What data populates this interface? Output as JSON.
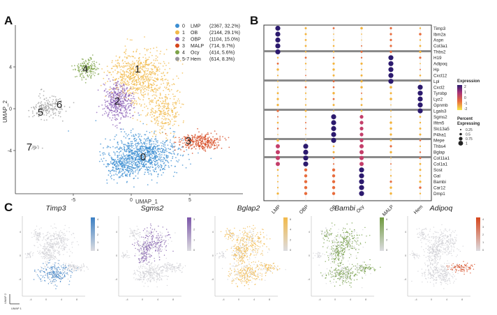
{
  "panel_letters": {
    "a": "A",
    "b": "B",
    "c": "C"
  },
  "panel_a": {
    "xlabel": "UMAP_1",
    "ylabel": "UMAP_2",
    "x_ticks": [
      "-5",
      "0",
      "5"
    ],
    "y_ticks": [
      "4",
      "0",
      "-4"
    ],
    "cluster_labels": [
      "0",
      "1",
      "2",
      "3",
      "4",
      "5",
      "6",
      "7"
    ],
    "legend": [
      {
        "id": "0",
        "name": "LMP",
        "stats": "(2367, 32.2%)",
        "color": "#3b8ed2"
      },
      {
        "id": "1",
        "name": "OB",
        "stats": "(2144, 29.1%)",
        "color": "#f2b94a"
      },
      {
        "id": "2",
        "name": "OBP",
        "stats": "(1104, 15.0%)",
        "color": "#8e63b8"
      },
      {
        "id": "3",
        "name": "MALP",
        "stats": "(714, 9.7%)",
        "color": "#d6461c"
      },
      {
        "id": "4",
        "name": "Ocy",
        "stats": "(414, 5.6%)",
        "color": "#7da348"
      },
      {
        "id": "5-7",
        "name": "Hem",
        "stats": "(614, 8.3%)",
        "color": "#9c9c9c"
      }
    ]
  },
  "panel_b": {
    "columns": [
      "LMP",
      "OBP",
      "OB",
      "Ocy",
      "MALP",
      "Hem"
    ],
    "genes": [
      "Timp3",
      "Ibm2a",
      "Aspn",
      "Col3a1",
      "Thbs2",
      "H19",
      "Adipoq",
      "Hp",
      "Cxcl12",
      "Lpl",
      "Cxcl2",
      "Tyrobp",
      "Lyz2",
      "Gpnmb",
      "Lgals3",
      "Sgms2",
      "Ifitm5",
      "Slc13a5",
      "P4ha1",
      "Mepe",
      "Thbs4",
      "Bglap",
      "Col11a1",
      "Col1a1",
      "Sost",
      "Gal",
      "Bambi",
      "Car12",
      "Dmp1"
    ],
    "legend_expression_title": "Expression",
    "expression_ticks": [
      "2",
      "1",
      "0",
      "-1",
      "-2"
    ],
    "legend_percent_title_1": "Percent",
    "legend_percent_title_2": "Expressing",
    "percent_labels": [
      "0.25",
      "0.5",
      "0.75",
      "1"
    ]
  },
  "panel_c": {
    "genes": [
      {
        "name": "Timp3",
        "color": "#3b7fc4",
        "ticks": [
          "4",
          "3",
          "2",
          "1",
          "0"
        ]
      },
      {
        "name": "Sgms2",
        "color": "#7b55a8",
        "ticks": [
          "3",
          "2",
          "1",
          "0"
        ]
      },
      {
        "name": "Bglap2",
        "color": "#f2b94a",
        "ticks": [
          "6",
          "4",
          "2",
          "0"
        ]
      },
      {
        "name": "Bambi",
        "color": "#6f9a3e",
        "ticks": [
          "6",
          "4",
          "2",
          "0"
        ]
      },
      {
        "name": "Adipoq",
        "color": "#d6461c",
        "ticks": [
          "4",
          "3",
          "2",
          "1",
          "0"
        ]
      }
    ],
    "x_ticks": [
      "-4",
      "0",
      "4",
      "8"
    ],
    "y_ticks": [
      "4",
      "0",
      "-4"
    ],
    "axis_label_x": "UMAP 1",
    "axis_label_y": "UMAP 2"
  }
}
